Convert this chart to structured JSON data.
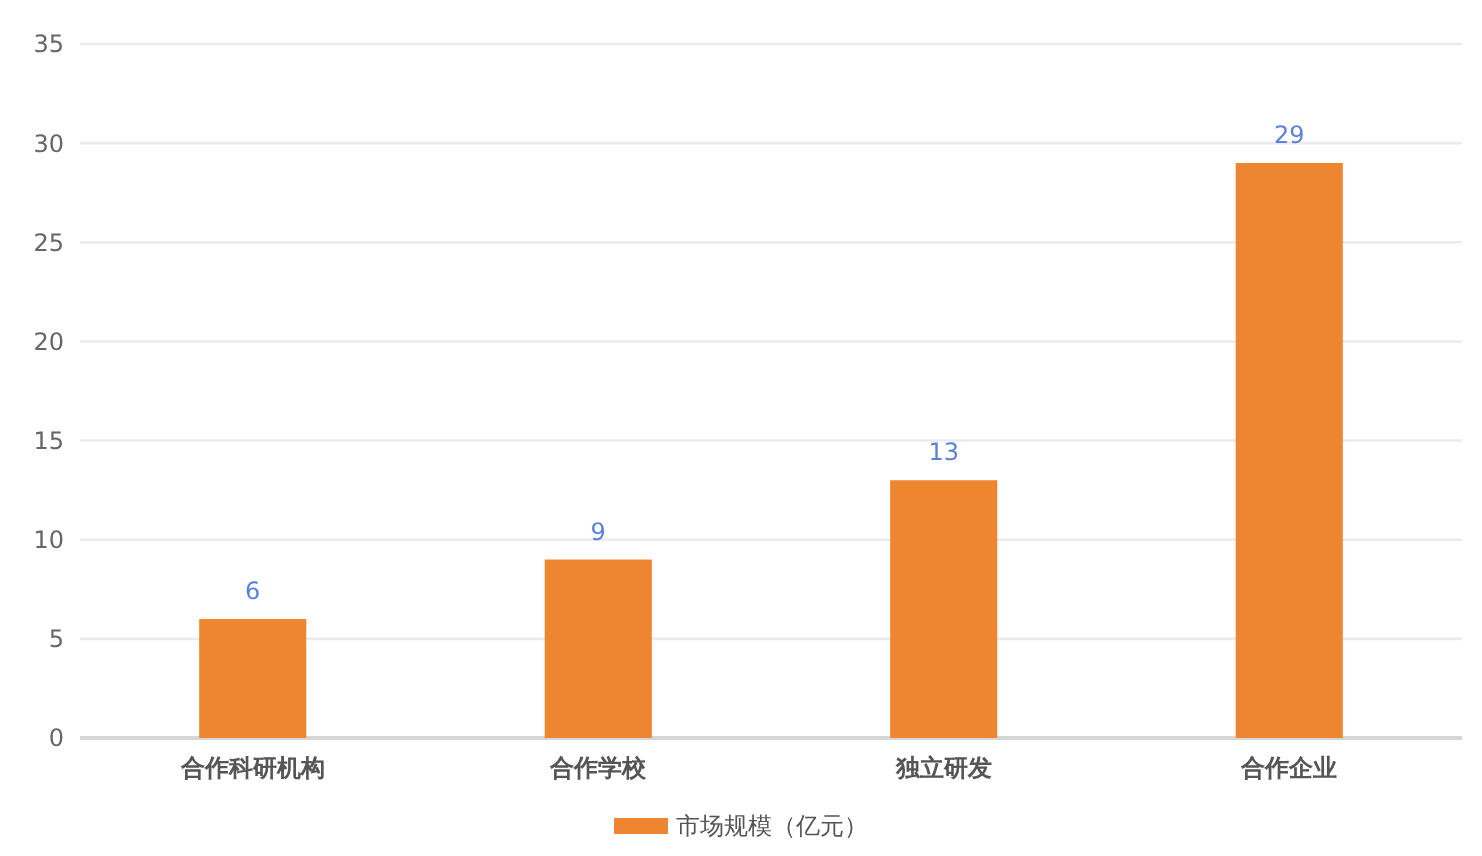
{
  "chart_data": {
    "type": "bar",
    "categories": [
      "合作科研机构",
      "合作学校",
      "独立研发",
      "合作企业"
    ],
    "series": [
      {
        "name": "市场规模（亿元）",
        "color": "#ee8530",
        "values": [
          6,
          9,
          13,
          29
        ]
      }
    ],
    "ylim": [
      0,
      35
    ],
    "yticks": [
      0,
      5,
      10,
      15,
      20,
      25,
      30,
      35
    ],
    "grid": "y",
    "legend": "bottom",
    "data_labels": true
  }
}
